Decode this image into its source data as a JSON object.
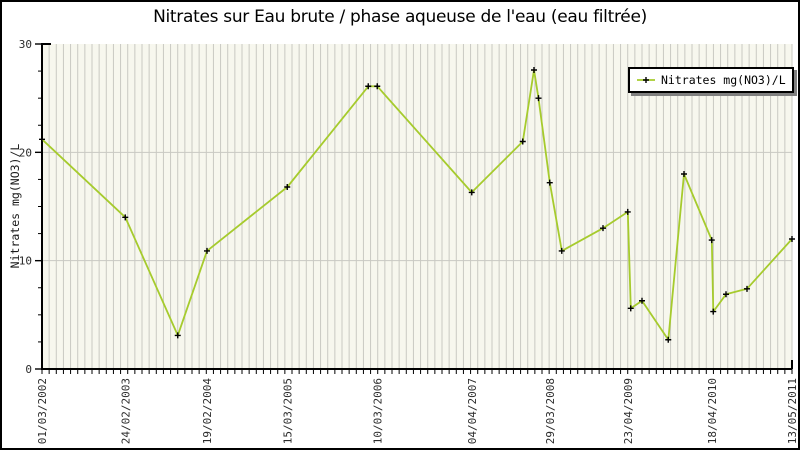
{
  "chart": {
    "title": "Nitrates sur Eau brute / phase aqueuse de l'eau (eau filtrée)",
    "ylabel": "Nitrates mg(NO3)/L"
  },
  "legend": {
    "label": "Nitrates mg(NO3)/L"
  },
  "colors": {
    "line": "#a6cb2d",
    "plot_bg": "#f7f7ee",
    "grid": "#c9c9c2",
    "axis": "#000000",
    "marker": "#000000",
    "tick_text": "#2b2b2b",
    "legend_shadow": "#808080"
  },
  "chart_data": {
    "type": "line",
    "title": "Nitrates sur Eau brute / phase aqueuse de l'eau (eau filtrée)",
    "xlabel": "",
    "ylabel": "Nitrates mg(NO3)/L",
    "ylim": [
      0,
      30
    ],
    "y_major_ticks": [
      0,
      10,
      20,
      30
    ],
    "y_minor_step": 2.5,
    "x_type": "time",
    "x_range_labels": [
      "01/03/2002",
      "13/05/2011"
    ],
    "x_ticks": [
      {
        "f": 0.0,
        "label": "01/03/2002"
      },
      {
        "f": 0.111,
        "label": "24/02/2003"
      },
      {
        "f": 0.22,
        "label": "19/02/2004"
      },
      {
        "f": 0.327,
        "label": "15/03/2005"
      },
      {
        "f": 0.447,
        "label": "10/03/2006"
      },
      {
        "f": 0.573,
        "label": "04/04/2007"
      },
      {
        "f": 0.677,
        "label": "29/03/2008"
      },
      {
        "f": 0.781,
        "label": "23/04/2009"
      },
      {
        "f": 0.893,
        "label": "18/04/2010"
      },
      {
        "f": 1.0,
        "label": "13/05/2011"
      }
    ],
    "x_minor_gridline_count": 105,
    "grid": {
      "vertical_minor": true,
      "horizontal_at": [
        10,
        20
      ]
    },
    "legend_position": "top-right",
    "series": [
      {
        "name": "Nitrates mg(NO3)/L",
        "marker": "plus",
        "points": [
          {
            "f": 0.0,
            "v": 21.2
          },
          {
            "f": 0.111,
            "v": 14.0
          },
          {
            "f": 0.181,
            "v": 3.1
          },
          {
            "f": 0.22,
            "v": 10.9
          },
          {
            "f": 0.327,
            "v": 16.8
          },
          {
            "f": 0.435,
            "v": 26.1
          },
          {
            "f": 0.447,
            "v": 26.1
          },
          {
            "f": 0.573,
            "v": 16.3
          },
          {
            "f": 0.641,
            "v": 21.0
          },
          {
            "f": 0.656,
            "v": 27.6
          },
          {
            "f": 0.662,
            "v": 25.0
          },
          {
            "f": 0.677,
            "v": 17.2
          },
          {
            "f": 0.693,
            "v": 10.9
          },
          {
            "f": 0.748,
            "v": 13.0
          },
          {
            "f": 0.781,
            "v": 14.5
          },
          {
            "f": 0.785,
            "v": 5.6
          },
          {
            "f": 0.8,
            "v": 6.3
          },
          {
            "f": 0.835,
            "v": 2.7
          },
          {
            "f": 0.856,
            "v": 18.0
          },
          {
            "f": 0.893,
            "v": 11.9
          },
          {
            "f": 0.895,
            "v": 5.3
          },
          {
            "f": 0.912,
            "v": 6.9
          },
          {
            "f": 0.94,
            "v": 7.4
          },
          {
            "f": 1.0,
            "v": 12.0
          }
        ]
      }
    ]
  }
}
